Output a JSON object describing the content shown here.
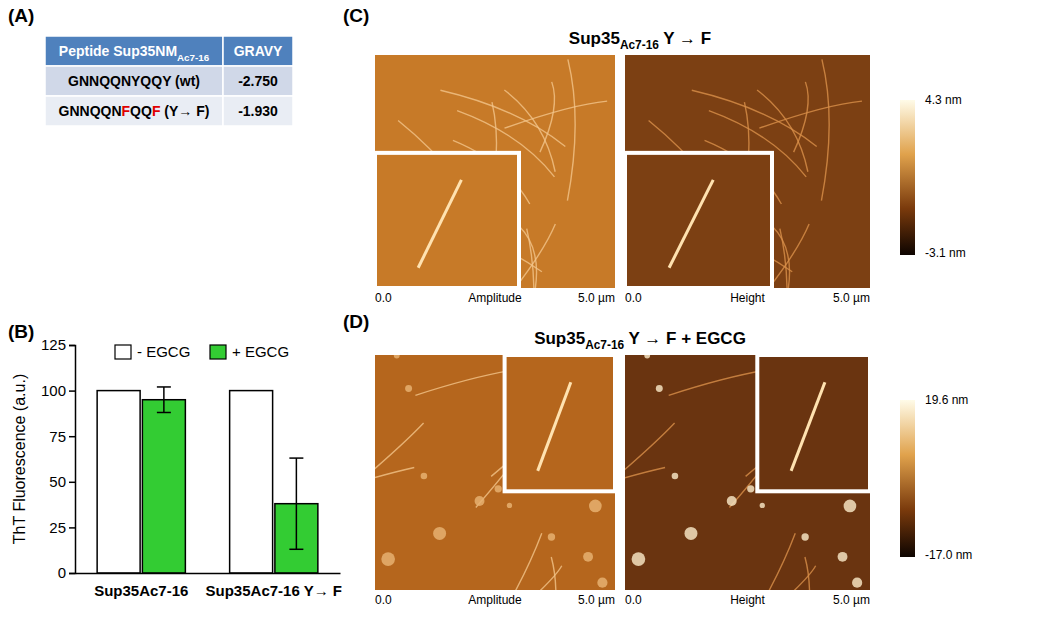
{
  "panel_labels": [
    "(A)",
    "(B)",
    "(C)",
    "(D)"
  ],
  "table": {
    "header": [
      [
        {
          "text": "Peptide Sup35NM"
        },
        {
          "text": "Ac7-16",
          "sub": true
        }
      ],
      [
        {
          "text": "GRAVY"
        }
      ]
    ],
    "rows": [
      [
        [
          {
            "text": "GNNQQNYQQY (wt)"
          }
        ],
        [
          {
            "text": "-2.750"
          }
        ]
      ],
      [
        [
          {
            "text": "GNNQQN"
          },
          {
            "text": "F",
            "color": "#e00000"
          },
          {
            "text": "QQ"
          },
          {
            "text": "F",
            "color": "#e00000"
          },
          {
            "text": " (Y→ F)"
          }
        ],
        [
          {
            "text": "-1.930"
          }
        ]
      ]
    ]
  },
  "chart_data": {
    "type": "bar",
    "categories": [
      "Sup35Ac7-16",
      "Sup35Ac7-16 Y→ F"
    ],
    "ylabel": "ThT Fluorescence (a.u.)",
    "ylim": [
      0,
      125
    ],
    "yticks": [
      0,
      25,
      50,
      75,
      100,
      125
    ],
    "legend": "top",
    "series": [
      {
        "name": "- EGCG",
        "color": "#ffffff",
        "values": [
          100,
          100
        ]
      },
      {
        "name": "+ EGCG",
        "color": "#33cc33",
        "values": [
          95,
          38
        ],
        "error": [
          7,
          25
        ]
      }
    ]
  },
  "images": [
    {
      "title": [
        {
          "text": "Sup35"
        },
        {
          "text": "Ac7-16",
          "sub": true
        },
        {
          "text": " Y → F"
        }
      ],
      "frames": [
        {
          "channel": "Amplitude",
          "x_start": "0.0",
          "x_end": "5.0 µm"
        },
        {
          "channel": "Height",
          "x_start": "0.0",
          "x_end": "5.0 µm"
        }
      ],
      "colorbar": {
        "range": [
          -3.1,
          4.3
        ],
        "ticks": [
          {
            "value": 4.3,
            "label": "4.3 nm"
          },
          {
            "value": -3.1,
            "label": "-3.1 nm"
          }
        ]
      }
    },
    {
      "title": [
        {
          "text": "Sup35"
        },
        {
          "text": "Ac7-16",
          "sub": true
        },
        {
          "text": " Y → F + EGCG"
        }
      ],
      "frames": [
        {
          "channel": "Amplitude",
          "x_start": "0.0",
          "x_end": "5.0 µm"
        },
        {
          "channel": "Height",
          "x_start": "0.0",
          "x_end": "5.0 µm"
        }
      ],
      "colorbar": {
        "range": [
          -17.0,
          19.6
        ],
        "ticks": [
          {
            "value": 19.6,
            "label": "19.6 nm"
          },
          {
            "value": -17.0,
            "label": "-17.0 nm"
          }
        ]
      }
    }
  ]
}
